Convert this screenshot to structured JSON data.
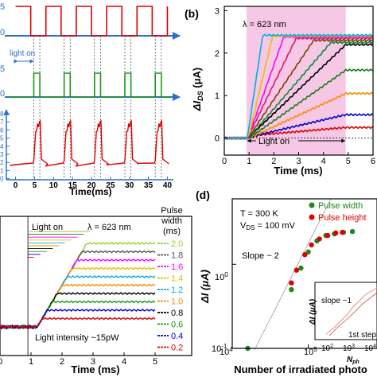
{
  "panel_labels": {
    "b": "(b)",
    "d": "(d)"
  },
  "chart_data": [
    {
      "id": "a",
      "type": "line",
      "xlabel": "Time(ms)",
      "xticks": [
        0,
        5,
        10,
        15,
        20,
        25,
        30,
        35,
        40
      ],
      "xlim": [
        -2,
        42
      ],
      "annotations": {
        "light_on": "light on"
      },
      "period_ms": 8,
      "pulse_width_ms": 4,
      "yticks_bottom": [
        "8",
        "7",
        "6",
        "5",
        "4",
        "3",
        "2",
        "1",
        "0"
      ],
      "yticks_middle": [
        "5",
        "0"
      ],
      "yticks_top": [
        "5",
        "0"
      ],
      "colors": {
        "top": "#e00000",
        "middle": "#1a9a1a",
        "bottom": "#e00000",
        "axis": "#2a6fc9",
        "dashed": "#444444"
      }
    },
    {
      "id": "b",
      "type": "line",
      "title": "λ = 623 nm",
      "xlabel": "Time (ms)",
      "ylabel": "ΔI_DS (μA)",
      "xlim": [
        0,
        6
      ],
      "ylim": [
        -0.4,
        3.1
      ],
      "xticks": [
        "0",
        "1",
        "2",
        "3",
        "4",
        "5",
        "6"
      ],
      "yticks": [
        "0",
        "1",
        "2",
        "3"
      ],
      "annotation": "Light on",
      "light_on_window_ms": [
        0.9,
        4.9
      ],
      "series": [
        {
          "color": "#e00000",
          "rise_start": 1.5,
          "rise_end": 4.9,
          "plateau": 0.25
        },
        {
          "color": "#0000cc",
          "rise_start": 1.4,
          "rise_end": 4.9,
          "plateau": 0.55
        },
        {
          "color": "#ff8c00",
          "rise_start": 1.3,
          "rise_end": 4.9,
          "plateau": 1.05
        },
        {
          "color": "#1a7a1a",
          "rise_start": 1.2,
          "rise_end": 4.9,
          "plateau": 1.6
        },
        {
          "color": "#000000",
          "rise_start": 1.1,
          "rise_end": 4.9,
          "plateau": 2.2
        },
        {
          "color": "#0a8a3a",
          "rise_start": 1.1,
          "rise_end": 4.3,
          "plateau": 2.25
        },
        {
          "color": "#7a3f00",
          "rise_start": 1.05,
          "rise_end": 3.6,
          "plateau": 2.3
        },
        {
          "color": "#dd1177",
          "rise_start": 1.0,
          "rise_end": 2.9,
          "plateau": 2.35
        },
        {
          "color": "#ff00ff",
          "rise_start": 1.0,
          "rise_end": 2.4,
          "plateau": 2.38
        },
        {
          "color": "#e8c000",
          "rise_start": 1.0,
          "rise_end": 1.95,
          "plateau": 2.4
        },
        {
          "color": "#00b0e0",
          "rise_start": 0.95,
          "rise_end": 1.55,
          "plateau": 2.42
        }
      ]
    },
    {
      "id": "c",
      "type": "line",
      "title": "λ = 623 nm",
      "xlabel": "Time (ms)",
      "xlim": [
        0,
        5
      ],
      "xticks": [
        "0",
        "1",
        "2",
        "3",
        "4",
        "5"
      ],
      "annotations": {
        "light_on": "Light on",
        "intensity": "Light intensity ~15pW"
      },
      "legend_title": [
        "Pulse",
        "width",
        "(ms)"
      ],
      "series": [
        {
          "name": "2.0",
          "color": "#9acd32",
          "plateau": 1.0
        },
        {
          "name": "1.8",
          "color": "#555555",
          "plateau": 0.9
        },
        {
          "name": "1.6",
          "color": "#ff00ff",
          "plateau": 0.8
        },
        {
          "name": "1.4",
          "color": "#e8c000",
          "plateau": 0.7
        },
        {
          "name": "1.2",
          "color": "#00b0e0",
          "plateau": 0.6
        },
        {
          "name": "1.0",
          "color": "#ff8c00",
          "plateau": 0.5
        },
        {
          "name": "0.8",
          "color": "#000000",
          "plateau": 0.4
        },
        {
          "name": "0.6",
          "color": "#1a9a1a",
          "plateau": 0.3
        },
        {
          "name": "0.4",
          "color": "#0000dd",
          "plateau": 0.2
        },
        {
          "name": "0.2",
          "color": "#e00000",
          "plateau": 0.1
        }
      ]
    },
    {
      "id": "d",
      "type": "scatter",
      "xlabel": "Number of irradiated photo",
      "ylabel": "ΔI (μA)",
      "xscale": "log",
      "yscale": "log",
      "xlim": [
        10000,
        800000
      ],
      "ylim": [
        0.1,
        6
      ],
      "xticks": [
        "10^4",
        "10^5"
      ],
      "yticks": [
        "10^-1",
        "10^0"
      ],
      "annotations": {
        "temperature": "T = 300 K",
        "vds": "V_DS = 100 mV",
        "slope": "Slope ~ 2"
      },
      "series": [
        {
          "name": "Pulse width",
          "color": "#1a8a1a",
          "x": [
            16000,
            60000,
            80000,
            100000,
            130000,
            170000,
            220000,
            290000,
            380000
          ],
          "y": [
            0.1,
            0.5,
            0.9,
            1.4,
            1.9,
            2.2,
            2.3,
            2.4,
            2.45
          ]
        },
        {
          "name": "Pulse height",
          "color": "#e00000",
          "x": [
            60000,
            70000,
            90000,
            110000,
            140000,
            180000,
            230000,
            280000
          ],
          "y": [
            0.6,
            0.85,
            1.3,
            1.7,
            2.0,
            2.2,
            2.35,
            2.4
          ]
        }
      ],
      "inset": {
        "xlabel": "N_ph",
        "ylabel": "ΔI (μA)",
        "xticks": [
          "10^2",
          "10^3",
          "10^4"
        ],
        "annotations": {
          "slope": "slope ~1",
          "step": "1st step"
        }
      }
    }
  ]
}
